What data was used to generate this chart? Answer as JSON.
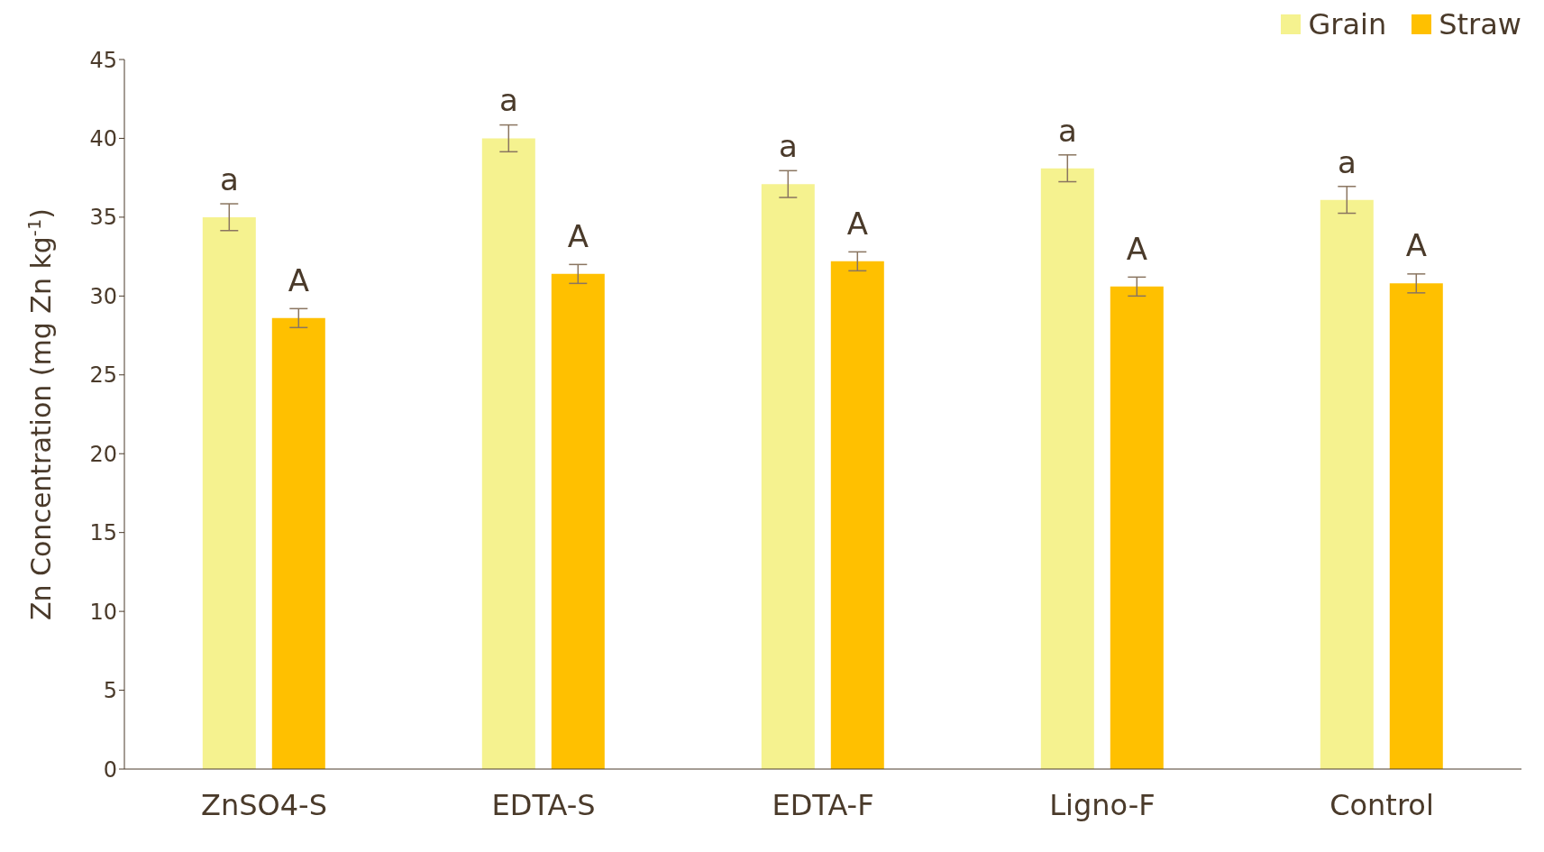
{
  "chart_data": {
    "type": "bar",
    "ylabel": "Zn Concentration (mg  Zn kg$^{-1}$)",
    "categories": [
      "ZnSO4-S",
      "EDTA-S",
      "EDTA-F",
      "Ligno-F",
      "Control"
    ],
    "series": [
      {
        "name": "Grain",
        "color": "#f5f28f",
        "values": [
          35.0,
          40.0,
          37.1,
          38.1,
          36.1
        ],
        "errors": [
          0.85,
          0.85,
          0.85,
          0.85,
          0.85
        ],
        "value_labels": [
          "a",
          "a",
          "a",
          "a",
          "a"
        ]
      },
      {
        "name": "Straw",
        "color": "#ffc000",
        "values": [
          28.6,
          31.4,
          32.2,
          30.6,
          30.8
        ],
        "errors": [
          0.6,
          0.6,
          0.6,
          0.6,
          0.6
        ],
        "value_labels": [
          "A",
          "A",
          "A",
          "A",
          "A"
        ]
      }
    ],
    "ylim": [
      0,
      45
    ],
    "yticks": [
      0,
      5,
      10,
      15,
      20,
      25,
      30,
      35,
      40,
      45
    ],
    "legend": "top right"
  }
}
